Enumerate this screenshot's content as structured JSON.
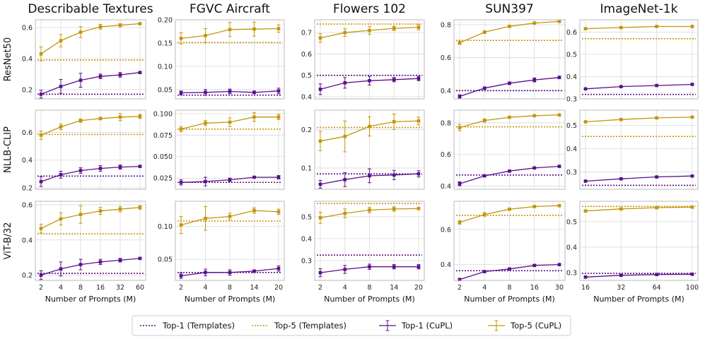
{
  "colors": {
    "top1": "#5a0f8c",
    "top5": "#c4960a"
  },
  "legend": {
    "items": [
      {
        "label": "Top-1 (Templates)",
        "style": "dotted",
        "color": "top1"
      },
      {
        "label": "Top-5 (Templates)",
        "style": "dotted",
        "color": "top5"
      },
      {
        "label": "Top-1 (CuPL)",
        "style": "errorbar",
        "color": "top1"
      },
      {
        "label": "Top-5 (CuPL)",
        "style": "errorbar",
        "color": "top5"
      }
    ]
  },
  "chart_data": {
    "type": "line",
    "xlabel": "Number of Prompts (M)",
    "columns": [
      {
        "title": "Describable Textures",
        "x_ticks": [
          "2",
          "4",
          "8",
          "16",
          "32",
          "60"
        ]
      },
      {
        "title": "FGVC Aircraft",
        "x_ticks": [
          "2",
          "4",
          "8",
          "14",
          "20"
        ]
      },
      {
        "title": "Flowers 102",
        "x_ticks": [
          "2",
          "4",
          "8",
          "14",
          "20"
        ]
      },
      {
        "title": "SUN397",
        "x_ticks": [
          "2",
          "4",
          "8",
          "16",
          "30"
        ]
      },
      {
        "title": "ImageNet-1k",
        "x_ticks": [
          "16",
          "32",
          "64",
          "100"
        ]
      }
    ],
    "rows": [
      "ResNet50",
      "NLLB-CLIP",
      "ViT-B/32"
    ],
    "panels": [
      [
        {
          "ylim": [
            0.14,
            0.65
          ],
          "yticks": [
            0.2,
            0.4,
            0.6
          ],
          "ytick_labels": [
            "0.2",
            "0.4",
            "0.6"
          ],
          "template_top1": 0.17,
          "template_top5": 0.39,
          "series": [
            {
              "name": "Top-1 (CuPL)",
              "values": [
                0.17,
                0.22,
                0.26,
                0.285,
                0.295,
                0.31
              ],
              "errors": [
                0.025,
                0.045,
                0.045,
                0.015,
                0.015,
                0.005
              ]
            },
            {
              "name": "Top-5 (CuPL)",
              "values": [
                0.43,
                0.515,
                0.57,
                0.605,
                0.615,
                0.625
              ],
              "errors": [
                0.045,
                0.04,
                0.035,
                0.015,
                0.01,
                0.005
              ]
            }
          ]
        },
        {
          "ylim": [
            0.03,
            0.2
          ],
          "yticks": [
            0.05,
            0.1,
            0.15,
            0.2
          ],
          "ytick_labels": [
            "0.05",
            "0.10",
            "0.15",
            "0.20"
          ],
          "template_top1": 0.038,
          "template_top5": 0.151,
          "series": [
            {
              "name": "Top-1 (CuPL)",
              "values": [
                0.043,
                0.044,
                0.046,
                0.044,
                0.047
              ],
              "errors": [
                0.004,
                0.006,
                0.005,
                0.003,
                0.006
              ]
            },
            {
              "name": "Top-5 (CuPL)",
              "values": [
                0.16,
                0.166,
                0.179,
                0.18,
                0.181
              ],
              "errors": [
                0.012,
                0.015,
                0.015,
                0.015,
                0.008
              ]
            }
          ]
        },
        {
          "ylim": [
            0.39,
            0.76
          ],
          "yticks": [
            0.4,
            0.5,
            0.6,
            0.7
          ],
          "ytick_labels": [
            "0.4",
            "0.5",
            "0.6",
            "0.7"
          ],
          "template_top1": 0.5,
          "template_top5": 0.74,
          "series": [
            {
              "name": "Top-1 (CuPL)",
              "values": [
                0.435,
                0.465,
                0.475,
                0.48,
                0.485
              ],
              "errors": [
                0.025,
                0.025,
                0.02,
                0.01,
                0.01
              ]
            },
            {
              "name": "Top-5 (CuPL)",
              "values": [
                0.675,
                0.7,
                0.71,
                0.72,
                0.725
              ],
              "errors": [
                0.02,
                0.018,
                0.018,
                0.01,
                0.012
              ]
            }
          ]
        },
        {
          "ylim": [
            0.35,
            0.83
          ],
          "yticks": [
            0.4,
            0.6,
            0.8
          ],
          "ytick_labels": [
            "0.4",
            "0.6",
            "0.8"
          ],
          "template_top1": 0.4,
          "template_top5": 0.705,
          "series": [
            {
              "name": "Top-1 (CuPL)",
              "values": [
                0.365,
                0.415,
                0.445,
                0.465,
                0.48
              ],
              "errors": [
                0.01,
                0.008,
                0.008,
                0.012,
                0.008
              ]
            },
            {
              "name": "Top-5 (CuPL)",
              "values": [
                0.69,
                0.755,
                0.79,
                0.81,
                0.82
              ],
              "errors": [
                0.01,
                0.008,
                0.006,
                0.006,
                0.005
              ]
            }
          ]
        },
        {
          "ylim": [
            0.3,
            0.655
          ],
          "yticks": [
            0.3,
            0.4,
            0.5,
            0.6
          ],
          "ytick_labels": [
            "0.3",
            "0.4",
            "0.5",
            "0.6"
          ],
          "template_top1": 0.32,
          "template_top5": 0.57,
          "series": [
            {
              "name": "Top-1 (CuPL)",
              "values": [
                0.345,
                0.355,
                0.36,
                0.365
              ],
              "errors": [
                0.003,
                0.003,
                0.003,
                0.003
              ]
            },
            {
              "name": "Top-5 (CuPL)",
              "values": [
                0.615,
                0.62,
                0.625,
                0.625
              ],
              "errors": [
                0.003,
                0.003,
                0.003,
                0.003
              ]
            }
          ]
        }
      ],
      [
        {
          "ylim": [
            0.19,
            0.76
          ],
          "yticks": [
            0.2,
            0.4,
            0.6
          ],
          "ytick_labels": [
            "0.2",
            "0.4",
            "0.6"
          ],
          "template_top1": 0.285,
          "template_top5": 0.585,
          "series": [
            {
              "name": "Top-1 (CuPL)",
              "values": [
                0.245,
                0.295,
                0.325,
                0.34,
                0.35,
                0.355
              ],
              "errors": [
                0.035,
                0.025,
                0.02,
                0.02,
                0.015,
                0.005
              ]
            },
            {
              "name": "Top-5 (CuPL)",
              "values": [
                0.58,
                0.64,
                0.685,
                0.7,
                0.71,
                0.715
              ],
              "errors": [
                0.03,
                0.02,
                0.012,
                0.01,
                0.025,
                0.015
              ]
            }
          ]
        },
        {
          "ylim": [
            0.012,
            0.104
          ],
          "yticks": [
            0.025,
            0.05,
            0.075,
            0.1
          ],
          "ytick_labels": [
            "0.025",
            "0.050",
            "0.075",
            "0.100"
          ],
          "template_top1": 0.02,
          "template_top5": 0.082,
          "series": [
            {
              "name": "Top-1 (CuPL)",
              "values": [
                0.02,
                0.021,
                0.023,
                0.026,
                0.026
              ],
              "errors": [
                0.003,
                0.005,
                0.002,
                0.001,
                0.002
              ]
            },
            {
              "name": "Top-5 (CuPL)",
              "values": [
                0.082,
                0.089,
                0.09,
                0.096,
                0.096
              ],
              "errors": [
                0.003,
                0.003,
                0.005,
                0.005,
                0.003
              ]
            }
          ]
        },
        {
          "ylim": [
            0.045,
            0.25
          ],
          "yticks": [
            0.1,
            0.2
          ],
          "ytick_labels": [
            "0.1",
            "0.2"
          ],
          "template_top1": 0.085,
          "template_top5": 0.205,
          "series": [
            {
              "name": "Top-1 (CuPL)",
              "values": [
                0.058,
                0.07,
                0.08,
                0.082,
                0.085
              ],
              "errors": [
                0.01,
                0.018,
                0.018,
                0.012,
                0.008
              ]
            },
            {
              "name": "Top-5 (CuPL)",
              "values": [
                0.17,
                0.182,
                0.208,
                0.22,
                0.222
              ],
              "errors": [
                0.025,
                0.04,
                0.025,
                0.02,
                0.01
              ]
            }
          ]
        },
        {
          "ylim": [
            0.38,
            0.88
          ],
          "yticks": [
            0.4,
            0.6,
            0.8
          ],
          "ytick_labels": [
            "0.4",
            "0.6",
            "0.8"
          ],
          "template_top1": 0.47,
          "template_top5": 0.775,
          "series": [
            {
              "name": "Top-1 (CuPL)",
              "values": [
                0.415,
                0.465,
                0.495,
                0.515,
                0.525
              ],
              "errors": [
                0.012,
                0.006,
                0.005,
                0.005,
                0.005
              ]
            },
            {
              "name": "Top-5 (CuPL)",
              "values": [
                0.77,
                0.815,
                0.835,
                0.845,
                0.85
              ],
              "errors": [
                0.02,
                0.01,
                0.005,
                0.005,
                0.005
              ]
            }
          ]
        },
        {
          "ylim": [
            0.225,
            0.565
          ],
          "yticks": [
            0.3,
            0.4,
            0.5
          ],
          "ytick_labels": [
            "0.3",
            "0.4",
            "0.5"
          ],
          "template_top1": 0.242,
          "template_top5": 0.452,
          "series": [
            {
              "name": "Top-1 (CuPL)",
              "values": [
                0.26,
                0.27,
                0.278,
                0.282
              ],
              "errors": [
                0.003,
                0.003,
                0.003,
                0.003
              ]
            },
            {
              "name": "Top-5 (CuPL)",
              "values": [
                0.515,
                0.525,
                0.532,
                0.535
              ],
              "errors": [
                0.003,
                0.003,
                0.003,
                0.003
              ]
            }
          ]
        }
      ],
      [
        {
          "ylim": [
            0.17,
            0.62
          ],
          "yticks": [
            0.2,
            0.4,
            0.6
          ],
          "ytick_labels": [
            "0.2",
            "0.4",
            "0.6"
          ],
          "template_top1": 0.21,
          "template_top5": 0.435,
          "series": [
            {
              "name": "Top-1 (CuPL)",
              "values": [
                0.2,
                0.235,
                0.26,
                0.275,
                0.285,
                0.295
              ],
              "errors": [
                0.025,
                0.04,
                0.03,
                0.015,
                0.01,
                0.005
              ]
            },
            {
              "name": "Top-5 (CuPL)",
              "values": [
                0.465,
                0.52,
                0.545,
                0.565,
                0.575,
                0.585
              ],
              "errors": [
                0.025,
                0.035,
                0.05,
                0.02,
                0.015,
                0.01
              ]
            }
          ]
        },
        {
          "ylim": [
            0.018,
            0.138
          ],
          "yticks": [
            0.05,
            0.1
          ],
          "ytick_labels": [
            "0.05",
            "0.10"
          ],
          "template_top1": 0.03,
          "template_top5": 0.108,
          "series": [
            {
              "name": "Top-1 (CuPL)",
              "values": [
                0.025,
                0.03,
                0.03,
                0.032,
                0.036
              ],
              "errors": [
                0.004,
                0.005,
                0.004,
                0.002,
                0.004
              ]
            },
            {
              "name": "Top-5 (CuPL)",
              "values": [
                0.102,
                0.112,
                0.115,
                0.124,
                0.122
              ],
              "errors": [
                0.013,
                0.018,
                0.005,
                0.004,
                0.004
              ]
            }
          ]
        },
        {
          "ylim": [
            0.21,
            0.57
          ],
          "yticks": [
            0.3,
            0.4,
            0.5
          ],
          "ytick_labels": [
            "0.3",
            "0.4",
            "0.5"
          ],
          "template_top1": 0.325,
          "template_top5": 0.56,
          "series": [
            {
              "name": "Top-1 (CuPL)",
              "values": [
                0.245,
                0.26,
                0.272,
                0.272,
                0.272
              ],
              "errors": [
                0.018,
                0.018,
                0.012,
                0.01,
                0.01
              ]
            },
            {
              "name": "Top-5 (CuPL)",
              "values": [
                0.495,
                0.515,
                0.53,
                0.535,
                0.537
              ],
              "errors": [
                0.025,
                0.02,
                0.012,
                0.01,
                0.005
              ]
            }
          ]
        },
        {
          "ylim": [
            0.31,
            0.76
          ],
          "yticks": [
            0.4,
            0.6
          ],
          "ytick_labels": [
            "0.4",
            "0.6"
          ],
          "template_top1": 0.365,
          "template_top5": 0.68,
          "series": [
            {
              "name": "Top-1 (CuPL)",
              "values": [
                0.315,
                0.36,
                0.375,
                0.395,
                0.4
              ],
              "errors": [
                0.005,
                0.006,
                0.006,
                0.005,
                0.005
              ]
            },
            {
              "name": "Top-5 (CuPL)",
              "values": [
                0.64,
                0.685,
                0.715,
                0.73,
                0.735
              ],
              "errors": [
                0.01,
                0.01,
                0.005,
                0.005,
                0.005
              ]
            }
          ]
        },
        {
          "ylim": [
            0.27,
            0.58
          ],
          "yticks": [
            0.3,
            0.4,
            0.5
          ],
          "ytick_labels": [
            "0.3",
            "0.4",
            "0.5"
          ],
          "template_top1": 0.297,
          "template_top5": 0.56,
          "series": [
            {
              "name": "Top-1 (CuPL)",
              "values": [
                0.283,
                0.29,
                0.293,
                0.294
              ],
              "errors": [
                0.003,
                0.003,
                0.003,
                0.003
              ]
            },
            {
              "name": "Top-5 (CuPL)",
              "values": [
                0.542,
                0.55,
                0.555,
                0.557
              ],
              "errors": [
                0.003,
                0.003,
                0.003,
                0.003
              ]
            }
          ]
        }
      ]
    ]
  }
}
